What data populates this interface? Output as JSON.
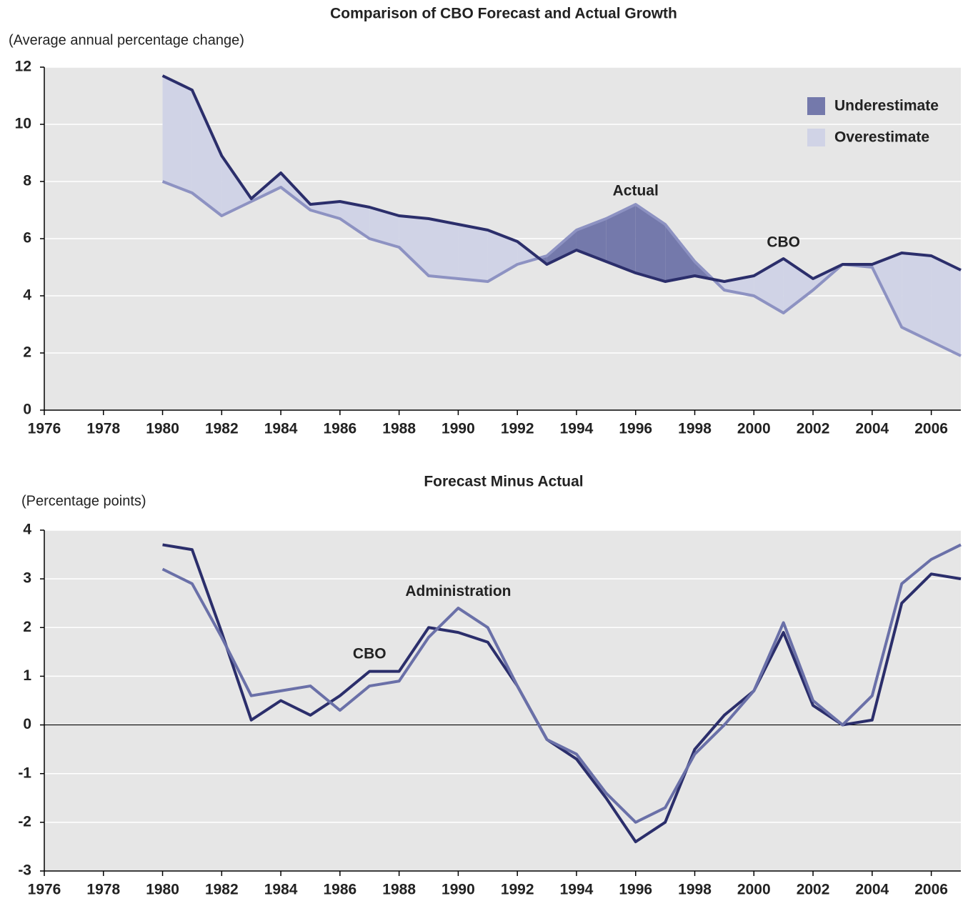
{
  "chart_data": [
    {
      "type": "line",
      "title": "Comparison of CBO Forecast and Actual Growth",
      "y_label": "(Average annual percentage change)",
      "x": [
        1980,
        1981,
        1982,
        1983,
        1984,
        1985,
        1986,
        1987,
        1988,
        1989,
        1990,
        1991,
        1992,
        1993,
        1994,
        1995,
        1996,
        1997,
        1998,
        1999,
        2000,
        2001,
        2002,
        2003,
        2004,
        2005,
        2006,
        2007
      ],
      "series": [
        {
          "name": "CBO",
          "color": "#2b2e6b",
          "label_at": [
            2001,
            5.85
          ],
          "values": [
            11.7,
            11.2,
            8.9,
            7.4,
            8.3,
            7.2,
            7.3,
            7.1,
            6.8,
            6.7,
            6.5,
            6.3,
            5.9,
            5.1,
            5.6,
            5.2,
            4.8,
            4.5,
            4.7,
            4.5,
            4.7,
            5.3,
            4.6,
            5.1,
            5.1,
            5.5,
            5.4,
            4.9
          ]
        },
        {
          "name": "Actual",
          "color": "#8d92c2",
          "label_at": [
            1996,
            7.65
          ],
          "values": [
            8.0,
            7.6,
            6.8,
            7.3,
            7.8,
            7.0,
            6.7,
            6.0,
            5.7,
            4.7,
            4.6,
            4.5,
            5.1,
            5.4,
            6.3,
            6.7,
            7.2,
            6.5,
            5.2,
            4.2,
            4.0,
            3.4,
            4.2,
            5.1,
            5.0,
            2.9,
            2.4,
            1.9
          ]
        }
      ],
      "fills": [
        {
          "name": "Underestimate",
          "color": "#7479ab"
        },
        {
          "name": "Overestimate",
          "color": "#d0d3e6"
        }
      ],
      "legend": "upper right",
      "xlim": [
        1976,
        2007
      ],
      "xticks": [
        1976,
        1978,
        1980,
        1982,
        1984,
        1986,
        1988,
        1990,
        1992,
        1994,
        1996,
        1998,
        2000,
        2002,
        2004,
        2006
      ],
      "ylim": [
        0,
        12
      ],
      "yticks": [
        0,
        2,
        4,
        6,
        8,
        10,
        12
      ],
      "grid": true,
      "zero_line": false
    },
    {
      "type": "line",
      "title": "Forecast Minus Actual",
      "y_label": "(Percentage points)",
      "x": [
        1980,
        1981,
        1982,
        1983,
        1984,
        1985,
        1986,
        1987,
        1988,
        1989,
        1990,
        1991,
        1992,
        1993,
        1994,
        1995,
        1996,
        1997,
        1998,
        1999,
        2000,
        2001,
        2002,
        2003,
        2004,
        2005,
        2006,
        2007
      ],
      "series": [
        {
          "name": "Administration",
          "color": "#6a70a8",
          "label_at": [
            1990,
            2.73
          ],
          "values": [
            3.2,
            2.9,
            1.8,
            0.6,
            0.7,
            0.8,
            0.3,
            0.8,
            0.9,
            1.8,
            2.4,
            2.0,
            0.8,
            -0.3,
            -0.6,
            -1.4,
            -2.0,
            -1.7,
            -0.6,
            0,
            0.7,
            2.1,
            0.5,
            0,
            0.6,
            2.9,
            3.4,
            3.7
          ]
        },
        {
          "name": "CBO",
          "color": "#2b2e6b",
          "label_at": [
            1987,
            1.45
          ],
          "values": [
            3.7,
            3.6,
            1.9,
            0.1,
            0.5,
            0.2,
            0.6,
            1.1,
            1.1,
            2.0,
            1.9,
            1.7,
            0.8,
            -0.3,
            -0.7,
            -1.5,
            -2.4,
            -2.0,
            -0.5,
            0.2,
            0.7,
            1.9,
            0.4,
            0,
            0.1,
            2.5,
            3.1,
            3.0
          ]
        }
      ],
      "xlim": [
        1976,
        2007
      ],
      "xticks": [
        1976,
        1978,
        1980,
        1982,
        1984,
        1986,
        1988,
        1990,
        1992,
        1994,
        1996,
        1998,
        2000,
        2002,
        2004,
        2006
      ],
      "ylim": [
        -3,
        4
      ],
      "yticks": [
        -3,
        -2,
        -1,
        0,
        1,
        2,
        3,
        4
      ],
      "grid": true,
      "zero_line": true
    }
  ]
}
